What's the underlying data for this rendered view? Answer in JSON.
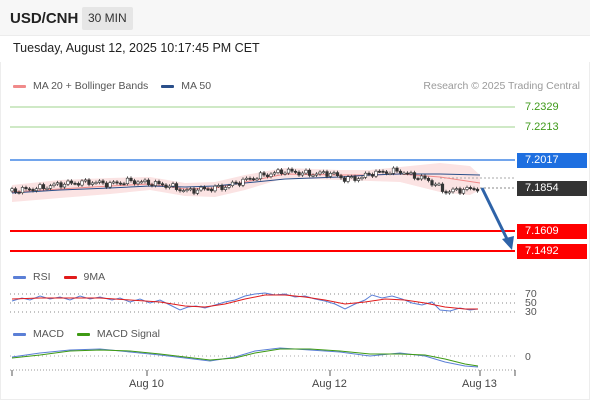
{
  "header": {
    "symbol": "USD/CNH",
    "timeframe": "30 MIN"
  },
  "datetime": "Tuesday, August 12, 2025 10:17:45 PM CET",
  "price_legend": {
    "items": [
      {
        "label": "MA 20 + Bollinger Bands",
        "color": "#f08a8a"
      },
      {
        "label": "MA 50",
        "color": "#2a4f8a"
      }
    ],
    "credit": "Research © 2025 Trading Central"
  },
  "price_levels": {
    "resistance_2": "7.2329",
    "resistance_1": "7.2213",
    "pivot": "7.2017",
    "last_price": "7.1854",
    "support_1": "7.1609",
    "support_2": "7.1492"
  },
  "rsi_legend": {
    "items": [
      {
        "label": "RSI",
        "color": "#5b7fd6"
      },
      {
        "label": "9MA",
        "color": "#e11b1b"
      }
    ],
    "ticks": [
      "70",
      "50",
      "30"
    ]
  },
  "macd_legend": {
    "items": [
      {
        "label": "MACD",
        "color": "#5b7fd6"
      },
      {
        "label": "MACD Signal",
        "color": "#3e9a14"
      }
    ],
    "ticks": [
      "0"
    ]
  },
  "x_axis": {
    "ticks": [
      "Aug 10",
      "Aug 12",
      "Aug 13"
    ]
  },
  "colors": {
    "support": "#ff0000",
    "pivot": "#1e6fe0",
    "resistance": "#9fd38c",
    "arrow": "#2e63a8",
    "candle_up": "#ffffff",
    "candle_down": "#333333",
    "band_fill": "#fbe3e3"
  }
}
